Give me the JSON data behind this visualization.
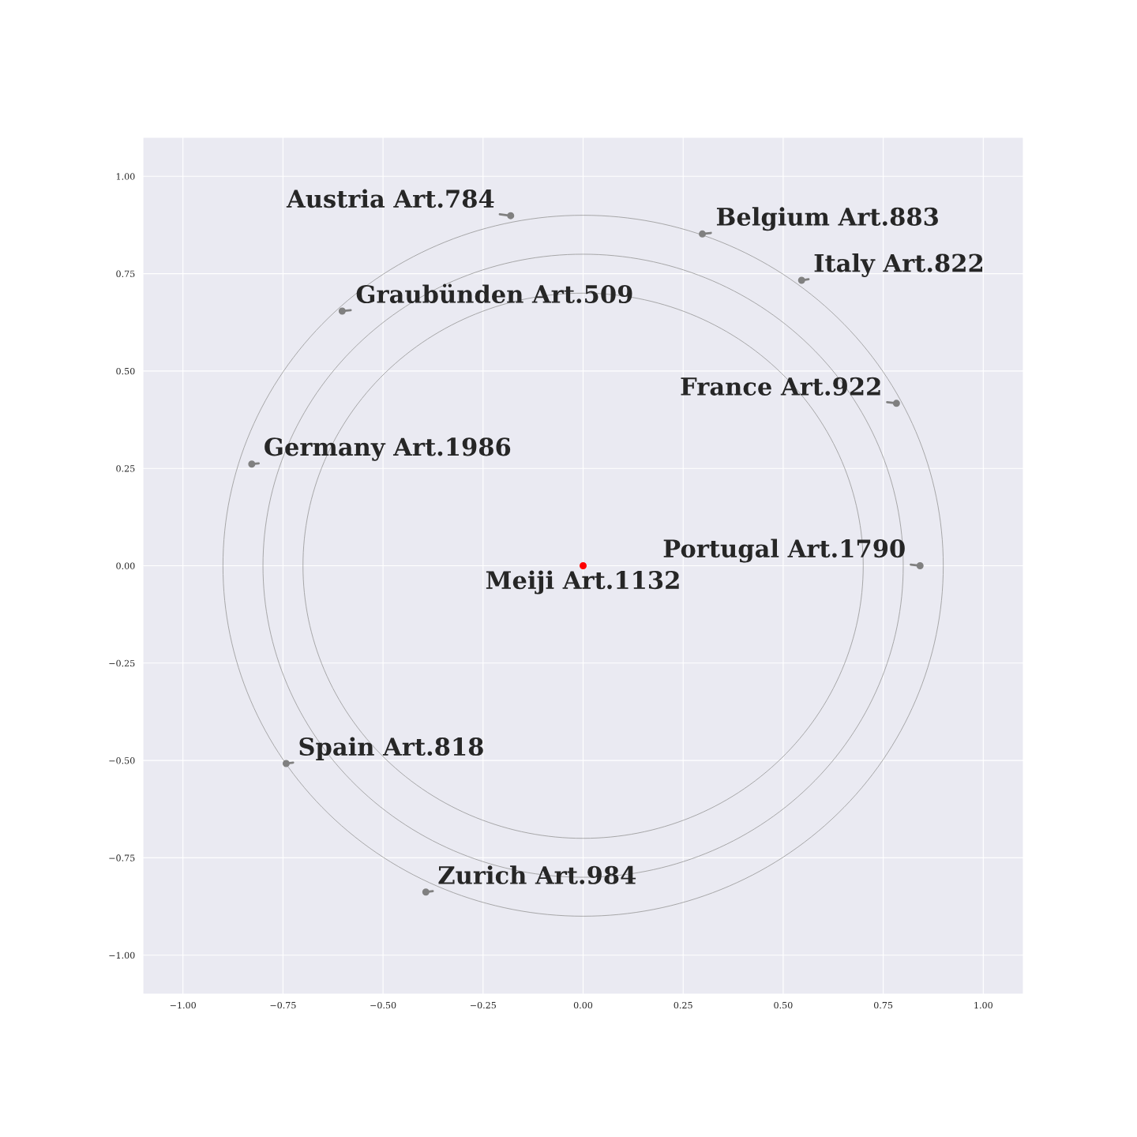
{
  "chart_data": {
    "type": "scatter",
    "xlim": [
      -1.1,
      1.1
    ],
    "ylim": [
      -1.1,
      1.1
    ],
    "xticks": [
      {
        "value": -1.0,
        "label": "−1.00"
      },
      {
        "value": -0.75,
        "label": "−0.75"
      },
      {
        "value": -0.5,
        "label": "−0.50"
      },
      {
        "value": -0.25,
        "label": "−0.25"
      },
      {
        "value": 0,
        "label": "0.00"
      },
      {
        "value": 0.25,
        "label": "0.25"
      },
      {
        "value": 0.5,
        "label": "0.50"
      },
      {
        "value": 0.75,
        "label": "0.75"
      },
      {
        "value": 1.0,
        "label": "1.00"
      }
    ],
    "yticks": [
      {
        "value": -1.0,
        "label": "−1.00"
      },
      {
        "value": -0.75,
        "label": "−0.75"
      },
      {
        "value": -0.5,
        "label": "−0.50"
      },
      {
        "value": -0.25,
        "label": "−0.25"
      },
      {
        "value": 0,
        "label": "0.00"
      },
      {
        "value": 0.25,
        "label": "0.25"
      },
      {
        "value": 0.5,
        "label": "0.50"
      },
      {
        "value": 0.75,
        "label": "0.75"
      },
      {
        "value": 1.0,
        "label": "1.00"
      }
    ],
    "grid": true,
    "marker": "circle",
    "x": [
      0,
      -0.181,
      0.298,
      0.546,
      -0.602,
      0.783,
      -0.828,
      0.842,
      -0.742,
      -0.393
    ],
    "values": [
      0,
      0.899,
      0.852,
      0.733,
      0.654,
      0.417,
      0.261,
      0,
      -0.508,
      -0.838
    ],
    "colors": [
      "#ff0000",
      "#808080",
      "#808080",
      "#808080",
      "#808080",
      "#808080",
      "#808080",
      "#808080",
      "#808080",
      "#808080"
    ],
    "annotations": [
      {
        "text": "Meiji Art.1132",
        "x": 0,
        "y": 0
      },
      {
        "text": "Austria Art.784",
        "x": -0.181,
        "y": 0.899
      },
      {
        "text": "Belgium Art.883",
        "x": 0.298,
        "y": 0.852
      },
      {
        "text": "Italy Art.822",
        "x": 0.546,
        "y": 0.733
      },
      {
        "text": "Graubünden Art.509",
        "x": -0.602,
        "y": 0.654
      },
      {
        "text": "France Art.922",
        "x": 0.783,
        "y": 0.417
      },
      {
        "text": "Germany Art.1986",
        "x": -0.828,
        "y": 0.261
      },
      {
        "text": "Portugal Art.1790",
        "x": 0.842,
        "y": 0
      },
      {
        "text": "Spain Art.818",
        "x": -0.742,
        "y": -0.508
      },
      {
        "text": "Zurich Art.984",
        "x": -0.393,
        "y": -0.838
      }
    ]
  }
}
